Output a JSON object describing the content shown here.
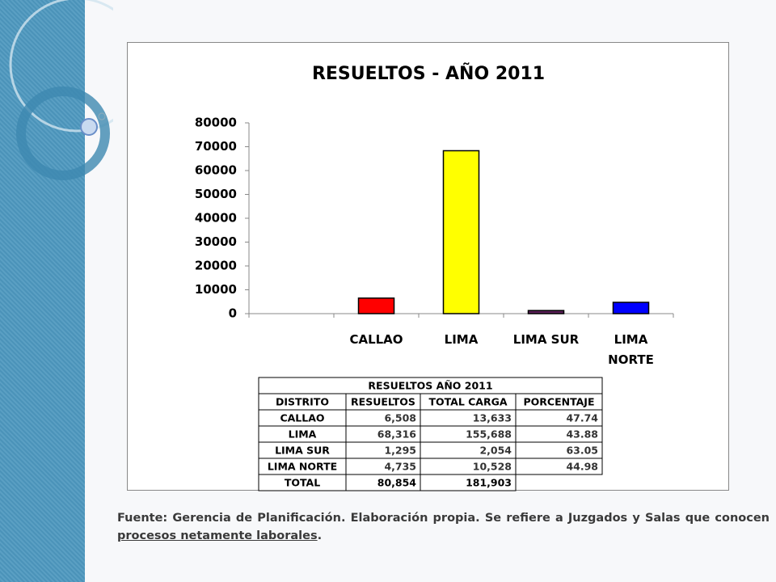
{
  "chart_data": {
    "type": "bar",
    "title": "RESUELTOS - AÑO 2011",
    "categories": [
      null,
      "CALLAO",
      "LIMA",
      "LIMA SUR",
      "LIMA NORTE"
    ],
    "values": [
      null,
      6508,
      68316,
      1295,
      4735
    ],
    "colors": [
      null,
      "#ff0000",
      "#ffff00",
      "#5c1f5a",
      "#0000ff"
    ],
    "ylim": [
      0,
      80000
    ],
    "yticks": [
      0,
      10000,
      20000,
      30000,
      40000,
      50000,
      60000,
      70000,
      80000
    ],
    "grid": false
  },
  "table": {
    "title": "RESUELTOS AÑO 2011",
    "header": [
      "DISTRITO",
      "RESUELTOS",
      "TOTAL CARGA",
      "PORCENTAJE"
    ],
    "rows": [
      [
        "CALLAO",
        "6,508",
        "13,633",
        "47.74"
      ],
      [
        "LIMA",
        "68,316",
        "155,688",
        "43.88"
      ],
      [
        "LIMA SUR",
        "1,295",
        "2,054",
        "63.05"
      ],
      [
        "LIMA NORTE",
        "4,735",
        "10,528",
        "44.98"
      ],
      [
        "TOTAL",
        "80,854",
        "181,903"
      ]
    ]
  },
  "footer": {
    "text": "Fuente: Gerencia de Planificación. Elaboración propia. Se refiere a Juzgados y Salas que conocen",
    "link": "procesos netamente laborales",
    "end": "."
  }
}
